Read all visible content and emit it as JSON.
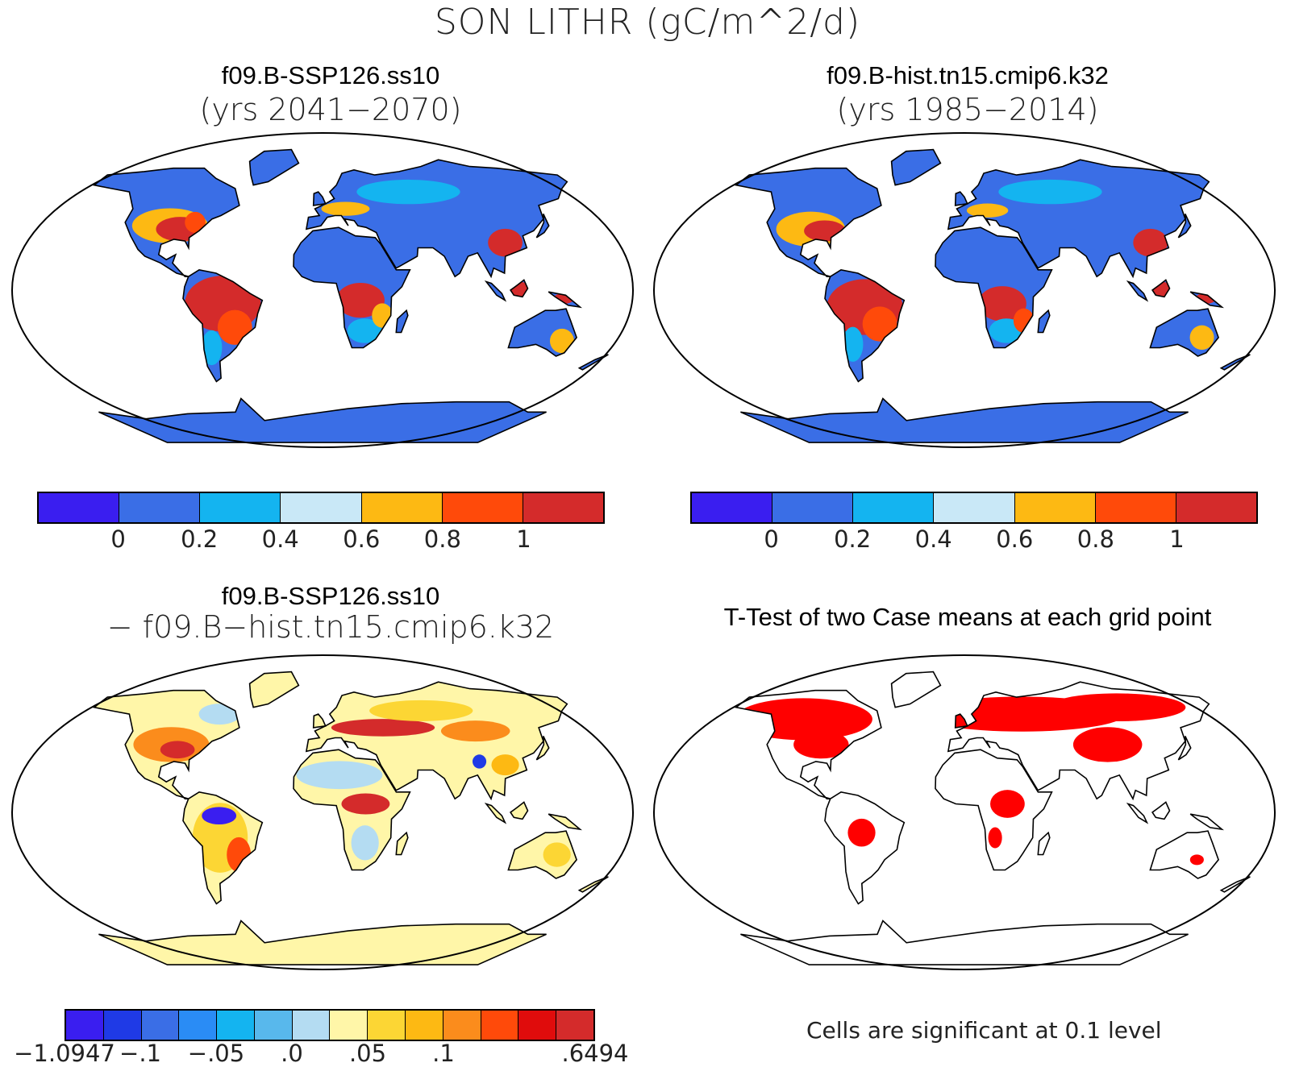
{
  "title": "SON LITHR (gC/m^2/d)",
  "panels": [
    {
      "title": "f09.B-SSP126.ss10",
      "subtitle": "(yrs 2041−2070)",
      "type": "absolute"
    },
    {
      "title": "f09.B-hist.tn15.cmip6.k32",
      "subtitle": "(yrs 1985−2014)",
      "type": "absolute"
    },
    {
      "title": "f09.B-SSP126.ss10",
      "subtitle": "− f09.B−hist.tn15.cmip6.k32",
      "type": "difference"
    },
    {
      "title": "T-Test of two Case means at each grid point",
      "subtitle": "",
      "type": "significance"
    }
  ],
  "colorbar_abs": {
    "colors": [
      "#3a1ef0",
      "#3a6ee6",
      "#14b4f0",
      "#c9e8f7",
      "#fdb913",
      "#ff4a0a",
      "#d42b2b"
    ],
    "labels": [
      "0",
      "0.2",
      "0.4",
      "0.6",
      "0.8",
      "1"
    ]
  },
  "colorbar_diff": {
    "colors": [
      "#3a1ef0",
      "#1f3ae6",
      "#3a6ee6",
      "#2a8cf5",
      "#14b4f0",
      "#58b8ec",
      "#b4dcf2",
      "#fff6a8",
      "#fcd634",
      "#fdb913",
      "#fb8c1c",
      "#ff4a0a",
      "#e00c0c",
      "#d42b2b"
    ],
    "labels": [
      "−1.0947",
      "−.1",
      "−.05",
      ".0",
      ".05",
      ".1",
      ".6494"
    ]
  },
  "significance_note": "Cells are significant at 0.1 level",
  "significance_color": "#ff0000"
}
